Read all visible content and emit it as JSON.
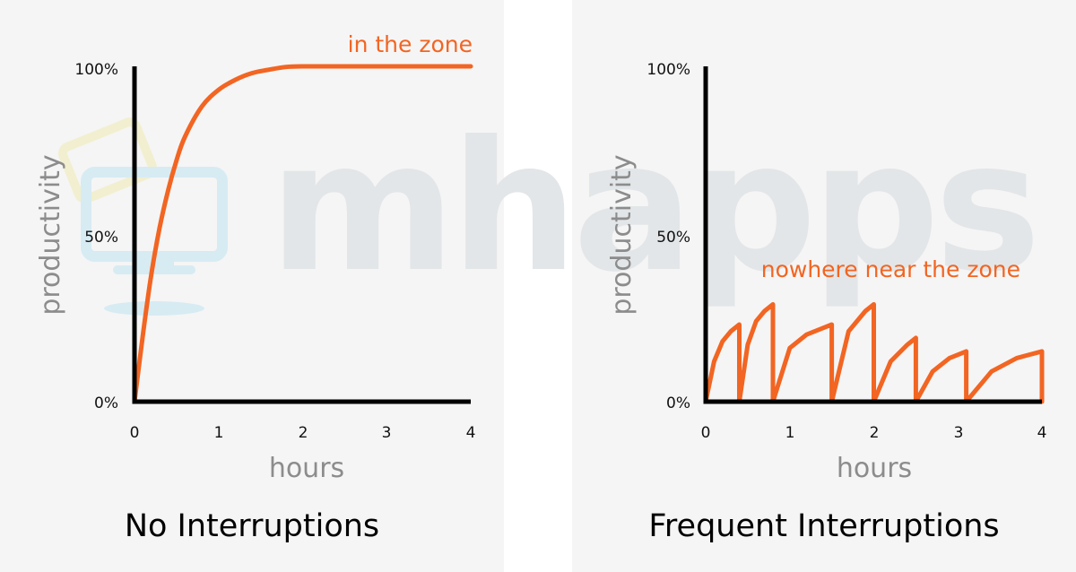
{
  "watermark": {
    "text": "mhapps"
  },
  "colors": {
    "page_background": "#ffffff",
    "panel_background": "#f5f5f5",
    "axis": "#000000",
    "curve": "#f26522",
    "axis_title": "#8c8c8c",
    "watermark": "#e3e6e8",
    "logo_blue": "#d7ebf3",
    "logo_yellow": "#f1efcf"
  },
  "chart_data": [
    {
      "type": "line",
      "title": "No Interruptions",
      "xlabel": "hours",
      "ylabel": "productivity",
      "xlim": [
        0,
        4
      ],
      "ylim": [
        0,
        100
      ],
      "x_ticks": [
        "0",
        "1",
        "2",
        "3",
        "4"
      ],
      "y_ticks": [
        "0%",
        "50%",
        "100%"
      ],
      "grid": false,
      "annotation": "in the zone",
      "series": [
        {
          "x": [
            0,
            0.1,
            0.2,
            0.3,
            0.4,
            0.5,
            0.6,
            0.8,
            1.0,
            1.2,
            1.4,
            1.6,
            1.8,
            2.0,
            2.5,
            3.0,
            3.5,
            4.0
          ],
          "y": [
            0,
            20,
            38,
            52,
            63,
            72,
            79,
            88,
            93,
            96,
            98,
            99,
            99.8,
            100,
            100,
            100,
            100,
            100
          ]
        }
      ]
    },
    {
      "type": "line",
      "title": "Frequent Interruptions",
      "xlabel": "hours",
      "ylabel": "productivity",
      "xlim": [
        0,
        4
      ],
      "ylim": [
        0,
        100
      ],
      "x_ticks": [
        "0",
        "1",
        "2",
        "3",
        "4"
      ],
      "y_ticks": [
        "0%",
        "50%",
        "100%"
      ],
      "grid": false,
      "annotation": "nowhere near the zone",
      "series": [
        {
          "x": [
            0,
            0.1,
            0.2,
            0.3,
            0.4,
            0.4,
            0.5,
            0.6,
            0.7,
            0.8,
            0.8,
            1.0,
            1.2,
            1.4,
            1.5,
            1.5,
            1.7,
            1.9,
            2.0,
            2.0,
            2.2,
            2.4,
            2.5,
            2.5,
            2.7,
            2.9,
            3.1,
            3.1,
            3.4,
            3.7,
            4.0,
            4.0
          ],
          "y": [
            0,
            12,
            18,
            21,
            23,
            0,
            17,
            24,
            27,
            29,
            0,
            16,
            20,
            22,
            23,
            0,
            21,
            27,
            29,
            0,
            12,
            17,
            19,
            0,
            9,
            13,
            15,
            0,
            9,
            13,
            15,
            0
          ]
        }
      ]
    }
  ]
}
